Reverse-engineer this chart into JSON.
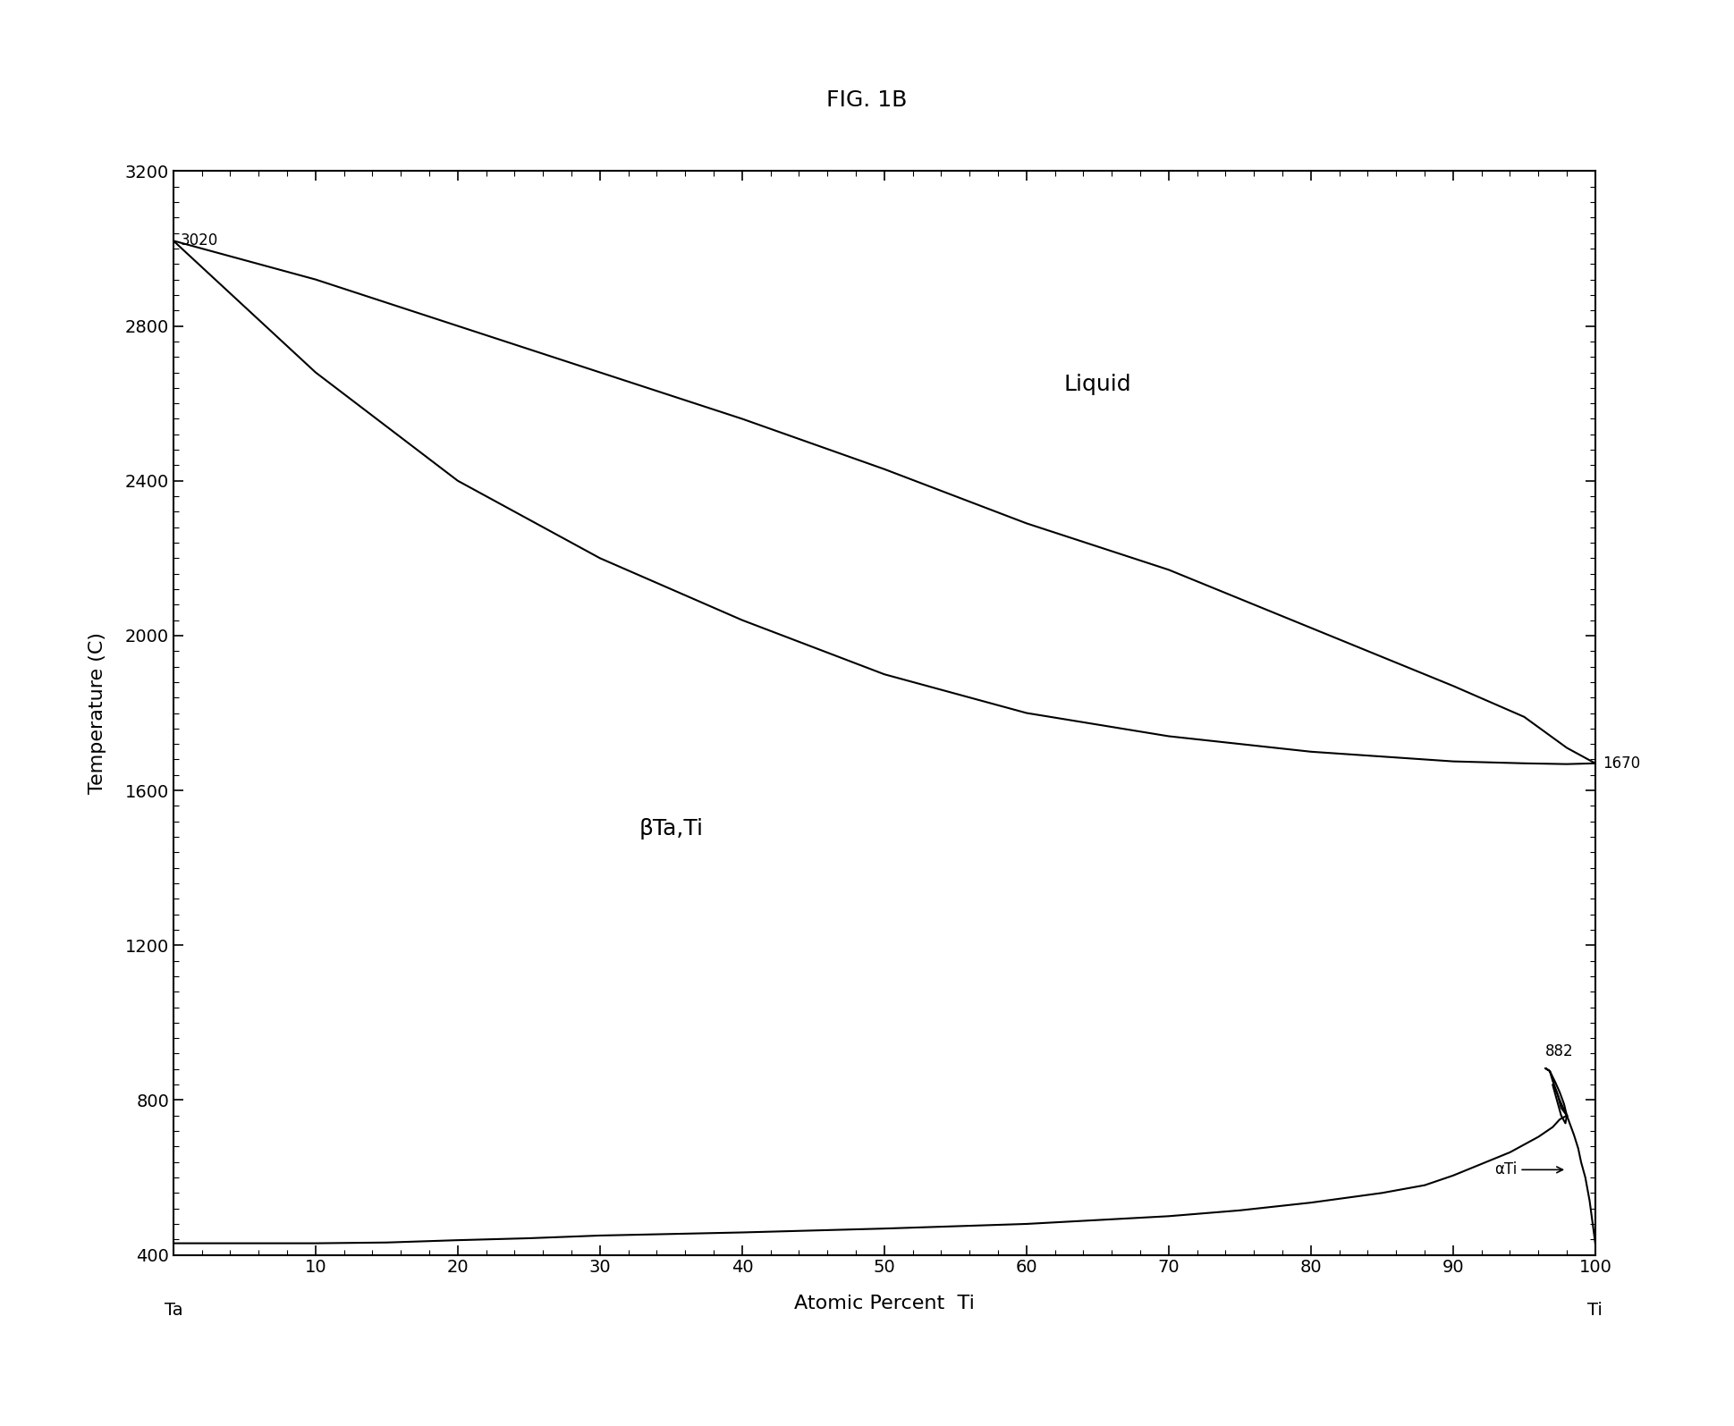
{
  "title": "FIG. 1B",
  "xlabel": "Atomic Percent  Ti",
  "ylabel": "Temperature (C)",
  "xlim": [
    0,
    100
  ],
  "ylim": [
    400,
    3200
  ],
  "x_ticks": [
    0,
    10,
    20,
    30,
    40,
    50,
    60,
    70,
    80,
    90,
    100
  ],
  "y_ticks": [
    400,
    800,
    1200,
    1600,
    2000,
    2400,
    2800,
    3200
  ],
  "x_tick_labels": [
    "",
    "10",
    "20",
    "30",
    "40",
    "50",
    "60",
    "70",
    "80",
    "90",
    "100"
  ],
  "background_color": "#ffffff",
  "line_color": "#000000",
  "label_Ta": "Ta",
  "label_Ti": "Ti",
  "label_3020": "3020",
  "label_1670": "1670",
  "label_882": "882",
  "label_liquid": "Liquid",
  "label_beta": "βTa,Ti",
  "label_alphaTi": "αTi",
  "liquidus_x": [
    0,
    10,
    20,
    30,
    40,
    50,
    60,
    70,
    80,
    90,
    95,
    98,
    100
  ],
  "liquidus_y": [
    3020,
    2920,
    2800,
    2680,
    2560,
    2430,
    2290,
    2170,
    2020,
    1870,
    1790,
    1710,
    1670
  ],
  "solidus_x": [
    0,
    10,
    20,
    30,
    40,
    50,
    60,
    70,
    80,
    90,
    95,
    98,
    100
  ],
  "solidus_y": [
    3020,
    2680,
    2400,
    2200,
    2040,
    1900,
    1800,
    1740,
    1700,
    1675,
    1670,
    1668,
    1670
  ],
  "beta_solvus_x": [
    0,
    5,
    10,
    15,
    20,
    25,
    30,
    40,
    50,
    60,
    70,
    75,
    80,
    85,
    88,
    90,
    92,
    94,
    95,
    96,
    97,
    97.5,
    98
  ],
  "beta_solvus_y": [
    430,
    430,
    430,
    432,
    438,
    443,
    450,
    458,
    468,
    480,
    500,
    515,
    535,
    560,
    580,
    605,
    635,
    665,
    685,
    705,
    730,
    750,
    760
  ],
  "alpha_outer_x": [
    98,
    97.8,
    97.5,
    97.2,
    97.0,
    96.8,
    96.5,
    96.8,
    97.0,
    97.3,
    97.6,
    98.0,
    98.0
  ],
  "alpha_outer_y": [
    760,
    790,
    820,
    845,
    860,
    875,
    882,
    875,
    850,
    820,
    780,
    760,
    760
  ],
  "alpha_inner_x": [
    98,
    97.8,
    97.5,
    97.3,
    97.0,
    97.3,
    97.6,
    97.9,
    98.0
  ],
  "alpha_inner_y": [
    760,
    775,
    800,
    820,
    840,
    800,
    760,
    740,
    760
  ],
  "alpha_low_x": [
    98,
    98.2,
    98.5,
    98.8,
    99,
    99.3,
    99.6,
    100
  ],
  "alpha_low_y": [
    760,
    740,
    710,
    675,
    640,
    600,
    540,
    430
  ]
}
